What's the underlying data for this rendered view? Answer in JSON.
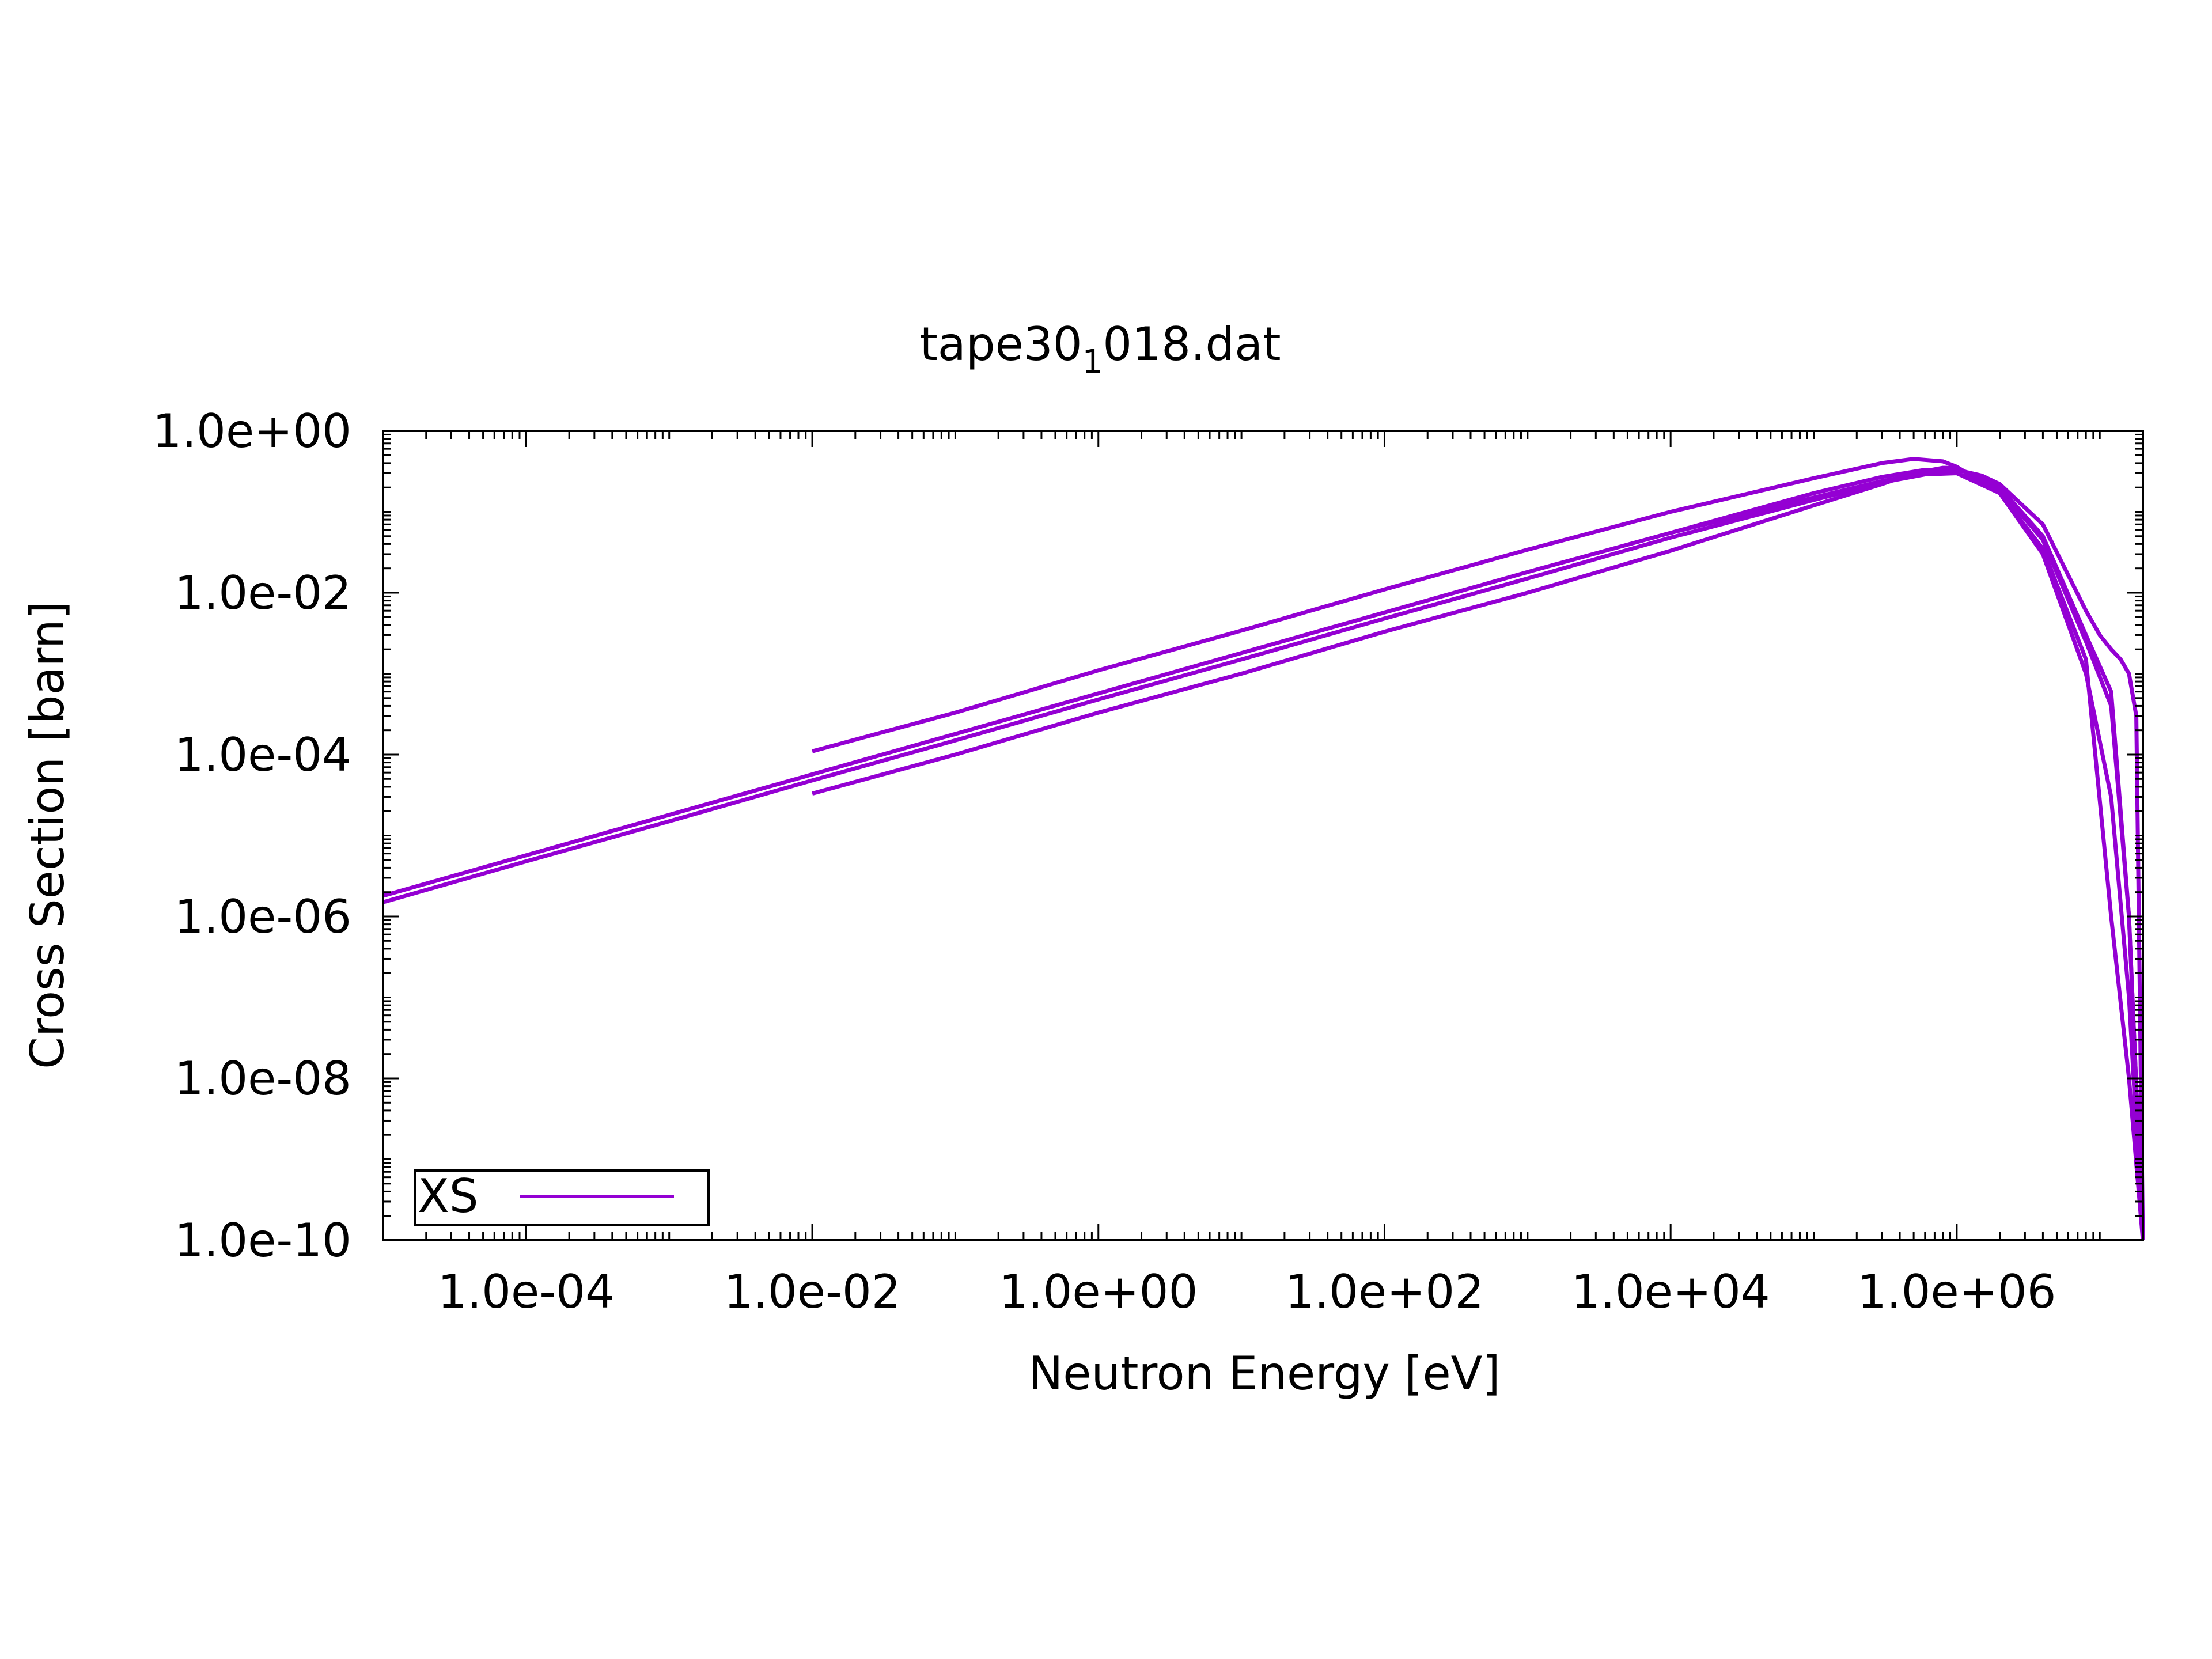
{
  "chart_data": {
    "type": "line",
    "title": "tape30",
    "title_subscript": "1",
    "title_suffix": "018.dat",
    "xlabel": "Neutron Energy [eV]",
    "ylabel": "Cross Section [barn]",
    "x_scale": "log",
    "y_scale": "log",
    "xlim": [
      1e-05,
      20000000
    ],
    "ylim": [
      1e-10,
      1
    ],
    "x_ticks": [
      {
        "value": 0.0001,
        "label": "1.0e-04"
      },
      {
        "value": 0.01,
        "label": "1.0e-02"
      },
      {
        "value": 1,
        "label": "1.0e+00"
      },
      {
        "value": 100,
        "label": "1.0e+02"
      },
      {
        "value": 10000,
        "label": "1.0e+04"
      },
      {
        "value": 1000000,
        "label": "1.0e+06"
      }
    ],
    "y_ticks": [
      {
        "value": 1,
        "label": "1.0e+00"
      },
      {
        "value": 0.01,
        "label": "1.0e-02"
      },
      {
        "value": 0.0001,
        "label": "1.0e-04"
      },
      {
        "value": 1e-06,
        "label": "1.0e-06"
      },
      {
        "value": 1e-08,
        "label": "1.0e-08"
      },
      {
        "value": 1e-10,
        "label": "1.0e-10"
      }
    ],
    "grid": false,
    "legend": {
      "position": "bottom-left",
      "entries": [
        "XS"
      ]
    },
    "series_color": "#9400d3",
    "series": [
      {
        "name": "XS",
        "curves": [
          {
            "x": [
              1e-05,
              0.0001,
              0.001,
              0.01,
              0.1,
              1,
              10,
              100,
              1000,
              10000,
              100000,
              300000,
              600000,
              1000000,
              2000000,
              4000000,
              8000000,
              12000000,
              16000000,
              20000000
            ],
            "y": [
              1.8e-06,
              5.7e-06,
              1.8e-05,
              5.7e-05,
              0.00018,
              0.00057,
              0.0018,
              0.0057,
              0.018,
              0.055,
              0.15,
              0.24,
              0.3,
              0.3,
              0.17,
              0.035,
              0.0015,
              1e-06,
              1e-08,
              1e-10
            ]
          },
          {
            "x": [
              1e-05,
              0.0001,
              0.001,
              0.01,
              0.1,
              1,
              10,
              100,
              1000,
              10000,
              100000,
              300000,
              600000,
              1000000,
              2000000,
              4000000,
              8000000,
              12000000,
              16000000,
              20000000
            ],
            "y": [
              1.5e-06,
              4.8e-06,
              1.5e-05,
              4.8e-05,
              0.00015,
              0.00048,
              0.0015,
              0.0048,
              0.015,
              0.048,
              0.14,
              0.23,
              0.29,
              0.3,
              0.19,
              0.045,
              0.0025,
              0.0004,
              1e-06,
              1e-10
            ]
          },
          {
            "x": [
              0.01,
              0.1,
              1,
              10,
              100,
              1000,
              10000,
              100000,
              300000,
              500000,
              800000,
              1000000,
              2000000,
              4000000,
              8000000,
              12000000,
              16000000,
              20000000
            ],
            "y": [
              0.00011,
              0.00033,
              0.0011,
              0.0034,
              0.011,
              0.034,
              0.1,
              0.26,
              0.4,
              0.45,
              0.42,
              0.36,
              0.17,
              0.03,
              0.001,
              3e-05,
              1e-07,
              1e-10
            ]
          },
          {
            "x": [
              0.01,
              0.1,
              1,
              10,
              100,
              1000,
              10000,
              100000,
              300000,
              500000,
              800000,
              1000000,
              2000000,
              4000000,
              8000000,
              12000000,
              16000000,
              20000000
            ],
            "y": [
              3.3e-05,
              0.0001,
              0.00033,
              0.001,
              0.0033,
              0.01,
              0.033,
              0.12,
              0.22,
              0.3,
              0.35,
              0.35,
              0.2,
              0.05,
              0.003,
              0.0006,
              1e-06,
              1e-10
            ]
          },
          {
            "x": [
              10000,
              100000,
              300000,
              600000,
              1000000,
              1500000,
              2000000,
              4000000,
              8000000,
              10000000,
              12000000,
              14000000,
              16000000,
              18000000,
              20000000
            ],
            "y": [
              0.055,
              0.17,
              0.27,
              0.33,
              0.33,
              0.28,
              0.22,
              0.07,
              0.006,
              0.003,
              0.002,
              0.0015,
              0.001,
              0.0003,
              1e-10
            ]
          }
        ]
      }
    ]
  }
}
